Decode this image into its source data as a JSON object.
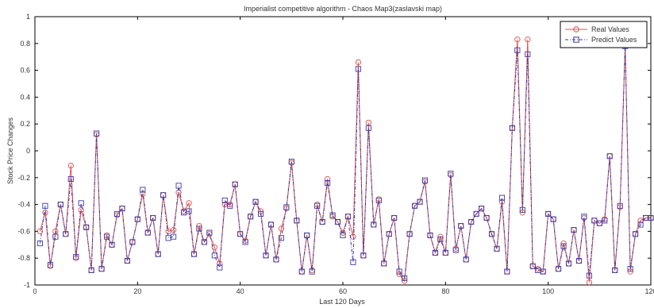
{
  "chart_data": {
    "type": "line",
    "title": "Imperialist competitive algorithm - Chaos Map3(zaslavski map)",
    "xlabel": "Last 120 Days",
    "ylabel": "Stock Price Changes",
    "xlim": [
      0,
      120
    ],
    "ylim": [
      -1,
      1
    ],
    "xticks": [
      0,
      20,
      40,
      60,
      80,
      100,
      120
    ],
    "yticks": [
      -1,
      -0.8,
      -0.6,
      -0.4,
      -0.2,
      0,
      0.2,
      0.4,
      0.6,
      0.8,
      1
    ],
    "grid": false,
    "legend_position": "top-right",
    "x": [
      1,
      2,
      3,
      4,
      5,
      6,
      7,
      8,
      9,
      10,
      11,
      12,
      13,
      14,
      15,
      16,
      17,
      18,
      19,
      20,
      21,
      22,
      23,
      24,
      25,
      26,
      27,
      28,
      29,
      30,
      31,
      32,
      33,
      34,
      35,
      36,
      37,
      38,
      39,
      40,
      41,
      42,
      43,
      44,
      45,
      46,
      47,
      48,
      49,
      50,
      51,
      52,
      53,
      54,
      55,
      56,
      57,
      58,
      59,
      60,
      61,
      62,
      63,
      64,
      65,
      66,
      67,
      68,
      69,
      70,
      71,
      72,
      73,
      74,
      75,
      76,
      77,
      78,
      79,
      80,
      81,
      82,
      83,
      84,
      85,
      86,
      87,
      88,
      89,
      90,
      91,
      92,
      93,
      94,
      95,
      96,
      97,
      98,
      99,
      100,
      101,
      102,
      103,
      104,
      105,
      106,
      107,
      108,
      109,
      110,
      111,
      112,
      113,
      114,
      115,
      116,
      117,
      118,
      119,
      120
    ],
    "series": [
      {
        "name": "Real Values",
        "color": "#d9534f",
        "marker": "circle",
        "values": [
          -0.6,
          -0.46,
          -0.86,
          -0.6,
          -0.4,
          -0.62,
          -0.11,
          -0.8,
          -0.44,
          -0.57,
          -0.89,
          0.12,
          -0.88,
          -0.63,
          -0.7,
          -0.48,
          -0.43,
          -0.82,
          -0.68,
          -0.51,
          -0.32,
          -0.61,
          -0.5,
          -0.77,
          -0.33,
          -0.6,
          -0.59,
          -0.31,
          -0.45,
          -0.39,
          -0.77,
          -0.56,
          -0.68,
          -0.62,
          -0.72,
          -0.84,
          -0.4,
          -0.4,
          -0.25,
          -0.62,
          -0.67,
          -0.49,
          -0.38,
          -0.45,
          -0.78,
          -0.55,
          -0.81,
          -0.58,
          -0.43,
          -0.09,
          -0.52,
          -0.9,
          -0.63,
          -0.89,
          -0.4,
          -0.53,
          -0.21,
          -0.49,
          -0.53,
          -0.61,
          -0.49,
          -0.64,
          0.66,
          -0.78,
          0.21,
          -0.55,
          -0.36,
          -0.84,
          -0.62,
          -0.5,
          -0.92,
          -0.97,
          -0.62,
          -0.41,
          -0.38,
          -0.23,
          -0.63,
          -0.76,
          -0.64,
          -0.76,
          -0.18,
          -0.73,
          -0.56,
          -0.81,
          -0.53,
          -0.47,
          -0.43,
          -0.5,
          -0.62,
          -0.73,
          -0.38,
          -0.9,
          0.17,
          0.83,
          -0.46,
          0.83,
          -0.86,
          -0.88,
          -0.9,
          -0.47,
          -0.51,
          -0.88,
          -0.69,
          -0.84,
          -0.59,
          -0.82,
          -0.5,
          -0.98,
          -0.52,
          -0.54,
          -0.51,
          -0.04,
          -0.89,
          -0.42,
          0.79,
          -0.9,
          -0.62,
          -0.52,
          -0.5,
          -0.5
        ]
      },
      {
        "name": "Predict Values",
        "color": "#3a3aa8",
        "marker": "square",
        "values": [
          -0.69,
          -0.41,
          -0.85,
          -0.64,
          -0.4,
          -0.62,
          -0.21,
          -0.79,
          -0.39,
          -0.57,
          -0.89,
          0.13,
          -0.88,
          -0.64,
          -0.7,
          -0.47,
          -0.43,
          -0.82,
          -0.68,
          -0.51,
          -0.29,
          -0.61,
          -0.5,
          -0.77,
          -0.33,
          -0.65,
          -0.64,
          -0.26,
          -0.46,
          -0.45,
          -0.77,
          -0.58,
          -0.68,
          -0.61,
          -0.78,
          -0.87,
          -0.37,
          -0.41,
          -0.25,
          -0.62,
          -0.68,
          -0.49,
          -0.38,
          -0.47,
          -0.78,
          -0.55,
          -0.81,
          -0.65,
          -0.42,
          -0.08,
          -0.52,
          -0.9,
          -0.63,
          -0.9,
          -0.41,
          -0.53,
          -0.24,
          -0.48,
          -0.53,
          -0.63,
          -0.49,
          -0.83,
          0.61,
          -0.78,
          0.17,
          -0.55,
          -0.37,
          -0.84,
          -0.62,
          -0.5,
          -0.9,
          -0.95,
          -0.62,
          -0.41,
          -0.38,
          -0.22,
          -0.63,
          -0.76,
          -0.66,
          -0.76,
          -0.17,
          -0.74,
          -0.56,
          -0.81,
          -0.53,
          -0.47,
          -0.43,
          -0.5,
          -0.62,
          -0.73,
          -0.35,
          -0.9,
          0.17,
          0.75,
          -0.44,
          0.72,
          -0.86,
          -0.89,
          -0.9,
          -0.47,
          -0.51,
          -0.88,
          -0.71,
          -0.84,
          -0.59,
          -0.82,
          -0.49,
          -0.93,
          -0.52,
          -0.54,
          -0.52,
          -0.04,
          -0.89,
          -0.41,
          0.78,
          -0.88,
          -0.62,
          -0.55,
          -0.5,
          -0.5
        ]
      }
    ]
  }
}
